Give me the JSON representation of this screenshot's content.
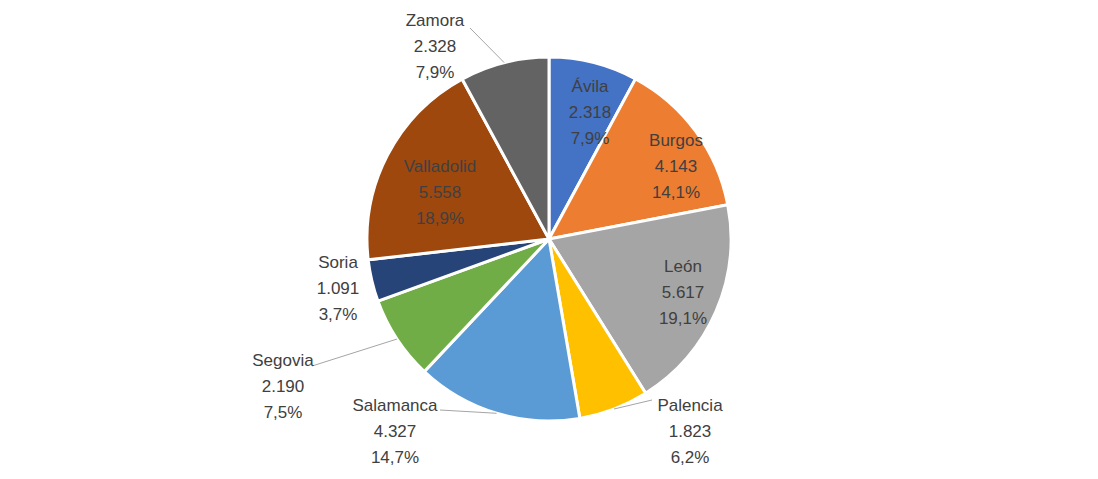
{
  "chart_data": {
    "type": "pie",
    "categories": [
      "Ávila",
      "Burgos",
      "León",
      "Palencia",
      "Salamanca",
      "Segovia",
      "Soria",
      "Valladolid",
      "Zamora"
    ],
    "values": [
      2318,
      4143,
      5617,
      1823,
      4327,
      2190,
      1091,
      5558,
      2328
    ],
    "value_labels": [
      "2.318",
      "4.143",
      "5.617",
      "1.823",
      "4.327",
      "2.190",
      "1.091",
      "5.558",
      "2.328"
    ],
    "percentages": [
      7.9,
      14.1,
      19.1,
      6.2,
      14.7,
      7.5,
      3.7,
      18.9,
      7.9
    ],
    "percentage_labels": [
      "7,9%",
      "14,1%",
      "19,1%",
      "6,2%",
      "14,7%",
      "7,5%",
      "3,7%",
      "18,9%",
      "7,9%"
    ],
    "colors": [
      "#4472c4",
      "#ed7d31",
      "#a5a5a5",
      "#ffc000",
      "#5b9bd5",
      "#70ad47",
      "#264478",
      "#9e480e",
      "#636363"
    ],
    "data_labels": true
  }
}
